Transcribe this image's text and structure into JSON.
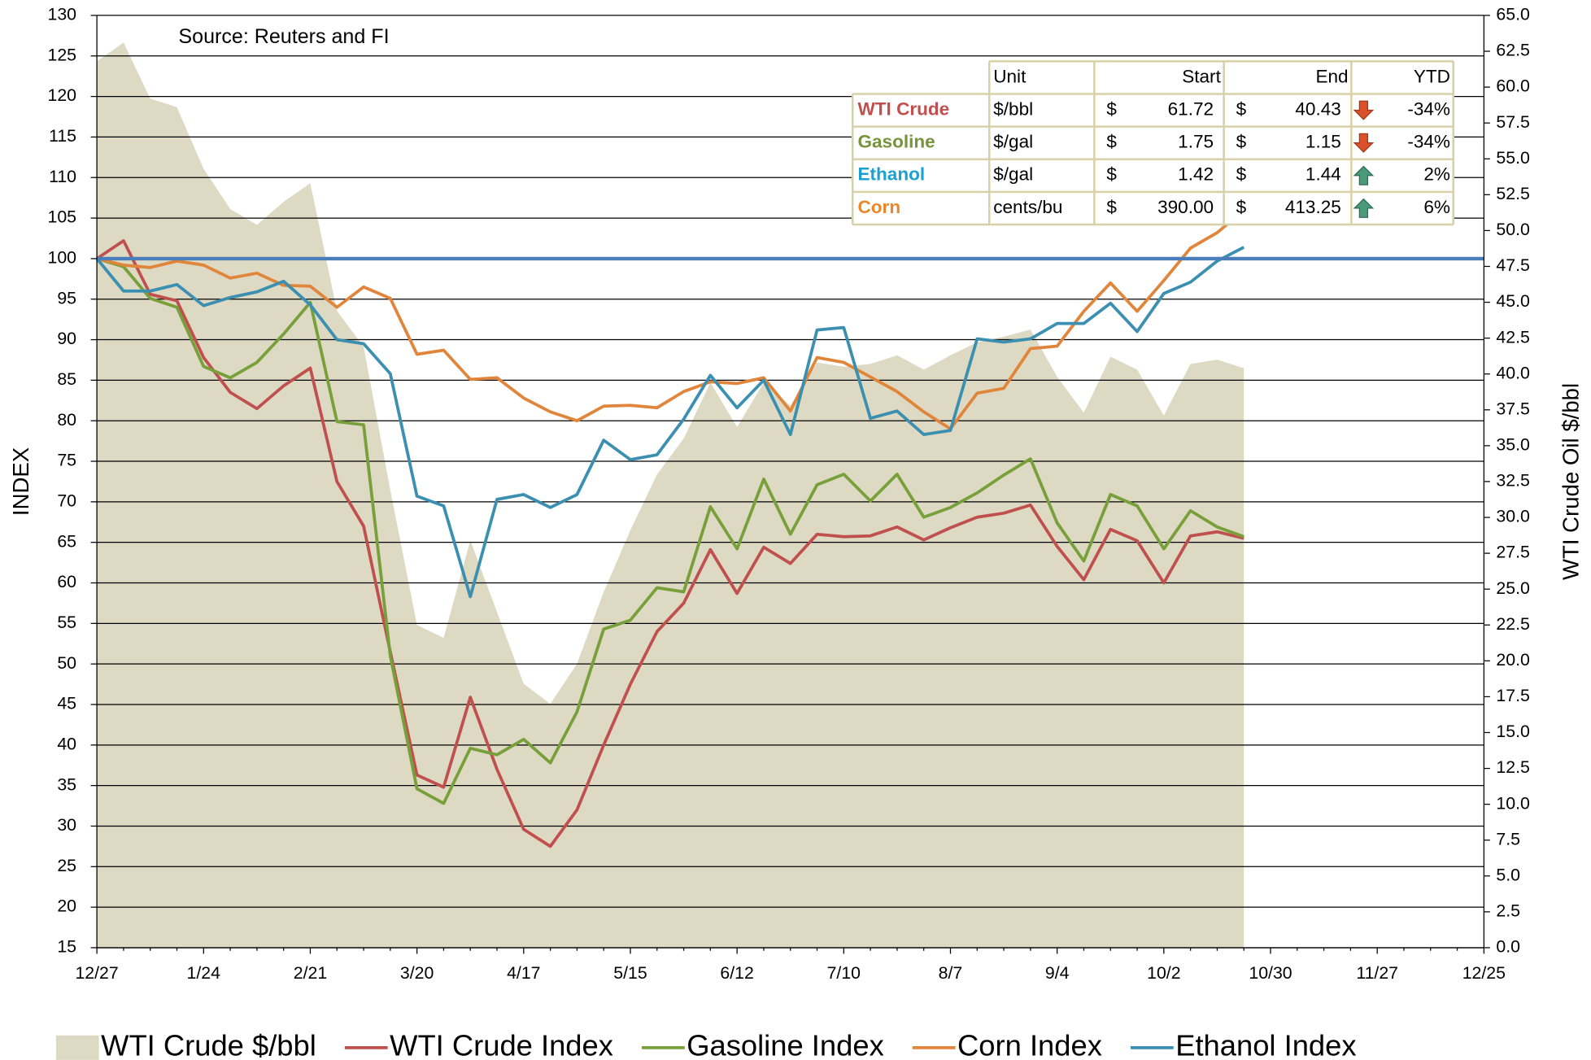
{
  "chart_data": {
    "type": "line",
    "annotation": "Source: Reuters and FI",
    "ylabel": "INDEX",
    "y2label": "WTI Crude Oil $/bbl",
    "categories": [
      "12/27",
      null,
      null,
      null,
      "1/24",
      null,
      null,
      null,
      "2/21",
      null,
      null,
      null,
      "3/20",
      null,
      null,
      null,
      "4/17",
      null,
      null,
      null,
      "5/15",
      null,
      null,
      null,
      "6/12",
      null,
      null,
      null,
      "7/10",
      null,
      null,
      null,
      "8/7",
      null,
      null,
      null,
      "9/4",
      null,
      null,
      null,
      "10/2",
      null,
      null,
      null,
      "10/30",
      null,
      null,
      null,
      "11/27",
      null,
      null,
      null,
      "12/25"
    ],
    "ylim": [
      15,
      130
    ],
    "yticks": [
      15,
      20,
      25,
      30,
      35,
      40,
      45,
      50,
      55,
      60,
      65,
      70,
      75,
      80,
      85,
      90,
      95,
      100,
      105,
      110,
      115,
      120,
      125,
      130
    ],
    "y2lim": [
      0,
      65
    ],
    "y2ticks": [
      {
        "value": 0,
        "label": "0.0"
      },
      {
        "value": 2.5,
        "label": "2.5"
      },
      {
        "value": 5,
        "label": "5.0"
      },
      {
        "value": 7.5,
        "label": "7.5"
      },
      {
        "value": 10,
        "label": "10.0"
      },
      {
        "value": 12.5,
        "label": "12.5"
      },
      {
        "value": 15,
        "label": "15.0"
      },
      {
        "value": 17.5,
        "label": "17.5"
      },
      {
        "value": 20,
        "label": "20.0"
      },
      {
        "value": 22.5,
        "label": "22.5"
      },
      {
        "value": 25,
        "label": "25.0"
      },
      {
        "value": 27.5,
        "label": "27.5"
      },
      {
        "value": 30,
        "label": "30.0"
      },
      {
        "value": 32.5,
        "label": "32.5"
      },
      {
        "value": 35,
        "label": "35.0"
      },
      {
        "value": 37.5,
        "label": "37.5"
      },
      {
        "value": 40,
        "label": "40.0"
      },
      {
        "value": 42.5,
        "label": "42.5"
      },
      {
        "value": 45,
        "label": "45.0"
      },
      {
        "value": 47.5,
        "label": "47.5"
      },
      {
        "value": 50,
        "label": "50.0"
      },
      {
        "value": 52.5,
        "label": "52.5"
      },
      {
        "value": 55,
        "label": "55.0"
      },
      {
        "value": 57.5,
        "label": "57.5"
      },
      {
        "value": 60,
        "label": "60.0"
      },
      {
        "value": 62.5,
        "label": "62.5"
      },
      {
        "value": 65,
        "label": "65.0"
      }
    ],
    "grid": true,
    "hline": {
      "value": 100,
      "color": "#4a7ebb"
    },
    "series": [
      {
        "name": "WTI Crude $/bbl",
        "type": "area",
        "axis": "y2",
        "color": "#ddd9c3",
        "values": [
          61.8,
          63.1,
          59.2,
          58.6,
          54.3,
          51.5,
          50.4,
          52.0,
          53.3,
          44.4,
          41.9,
          31.9,
          22.5,
          21.6,
          28.4,
          23.4,
          18.4,
          17.0,
          19.8,
          24.8,
          29.1,
          33.0,
          35.5,
          39.4,
          36.3,
          39.4,
          37.8,
          40.8,
          40.5,
          40.7,
          41.3,
          40.3,
          41.3,
          42.2,
          42.6,
          43.1,
          39.8,
          37.3,
          41.2,
          40.3,
          37.1,
          40.7,
          41.0,
          40.4,
          null,
          null,
          null,
          null,
          null,
          null,
          null,
          null,
          null
        ]
      },
      {
        "name": "WTI Crude Index",
        "color": "#c0504d",
        "values": [
          100,
          102.2,
          95.6,
          94.8,
          87.8,
          83.5,
          81.5,
          84.3,
          86.5,
          72.5,
          67,
          51.5,
          36.3,
          34.8,
          45.9,
          37,
          29.6,
          27.5,
          32,
          40,
          47.5,
          54,
          57.5,
          64.1,
          58.7,
          64.4,
          62.4,
          66,
          65.7,
          65.8,
          66.9,
          65.3,
          66.8,
          68.1,
          68.6,
          69.6,
          64.5,
          60.4,
          66.6,
          65.2,
          60,
          65.8,
          66.3,
          65.5,
          null,
          null,
          null,
          null,
          null,
          null,
          null,
          null,
          null
        ]
      },
      {
        "name": "Gasoline Index",
        "color": "#77a03a",
        "values": [
          100,
          99,
          95.1,
          94,
          86.7,
          85.3,
          87.2,
          90.7,
          94.6,
          79.9,
          79.5,
          51,
          34.6,
          32.8,
          39.6,
          38.8,
          40.7,
          37.8,
          44.1,
          54.3,
          55.4,
          59.4,
          58.9,
          69.4,
          64.2,
          72.8,
          66,
          72.1,
          73.4,
          70.1,
          73.4,
          68.1,
          69.3,
          71.1,
          73.3,
          75.3,
          67.4,
          62.7,
          70.9,
          69.5,
          64.2,
          68.9,
          66.9,
          65.7,
          null,
          null,
          null,
          null,
          null,
          null,
          null,
          null,
          null
        ]
      },
      {
        "name": "Corn Index",
        "color": "#e0853a",
        "values": [
          100,
          99.2,
          98.9,
          99.7,
          99.2,
          97.6,
          98.2,
          96.7,
          96.6,
          94,
          96.5,
          95.1,
          88.2,
          88.7,
          85.1,
          85.3,
          82.8,
          81.1,
          80,
          81.8,
          81.9,
          81.6,
          83.6,
          84.8,
          84.6,
          85.3,
          81.2,
          87.8,
          87.2,
          85.4,
          83.6,
          81.1,
          79,
          83.4,
          84,
          88.9,
          89.2,
          93.5,
          97,
          93.5,
          97.3,
          101.3,
          103.2,
          106,
          null,
          null,
          null,
          null,
          null,
          null,
          null,
          null,
          null
        ]
      },
      {
        "name": "Ethanol Index",
        "color": "#3b8fb0",
        "values": [
          100,
          96,
          96,
          96.8,
          94.2,
          95.2,
          95.9,
          97.2,
          94.3,
          90,
          89.5,
          85.8,
          70.7,
          69.5,
          58.3,
          70.3,
          70.9,
          69.3,
          70.9,
          77.6,
          75.2,
          75.8,
          80.2,
          85.6,
          81.6,
          85,
          78.3,
          91.2,
          91.5,
          80.3,
          81.2,
          78.3,
          78.8,
          90.1,
          89.7,
          90.1,
          92,
          92,
          94.5,
          91,
          95.7,
          97.1,
          99.7,
          101.4,
          null,
          null,
          null,
          null,
          null,
          null,
          null,
          null,
          null
        ]
      }
    ],
    "table": {
      "header": [
        "Unit",
        "Start",
        "End",
        "YTD"
      ],
      "rows": [
        {
          "name": "WTI Crude",
          "color": "#c0504d",
          "unit": "$/bbl",
          "cur": "$",
          "start": "61.72",
          "end": "40.43",
          "ytd": "-34%"
        },
        {
          "name": "Gasoline",
          "color": "#77933c",
          "unit": "$/gal",
          "cur": "$",
          "start": "1.75",
          "end": "1.15",
          "ytd": "-34%"
        },
        {
          "name": "Ethanol",
          "color": "#1aa1d0",
          "unit": "$/gal",
          "cur": "$",
          "start": "1.42",
          "end": "1.44",
          "ytd": "2%"
        },
        {
          "name": "Corn",
          "color": "#e8872b",
          "unit": "cents/bu",
          "cur": "$",
          "start": "390.00",
          "end": "413.25",
          "ytd": "6%"
        }
      ]
    }
  }
}
